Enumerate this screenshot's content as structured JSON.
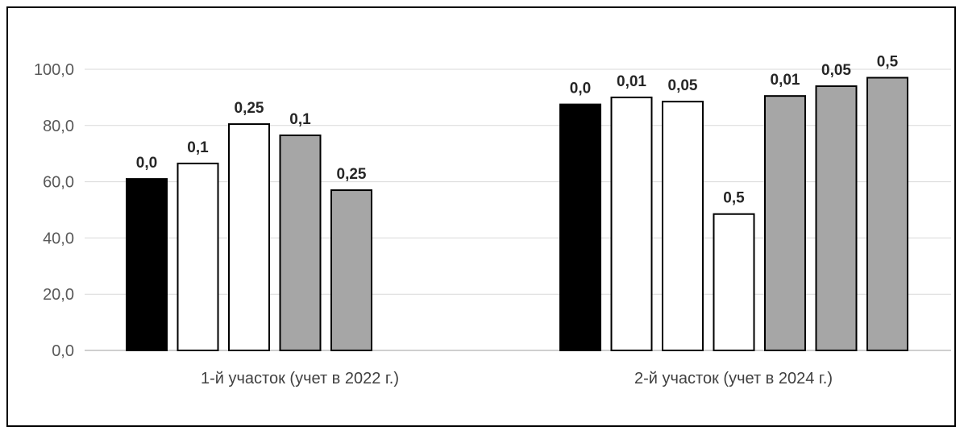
{
  "chart_data": {
    "type": "bar",
    "title": "",
    "xlabel": "",
    "ylabel": "",
    "ylim": [
      0,
      100
    ],
    "yticks": [
      "0,0",
      "20,0",
      "40,0",
      "60,0",
      "80,0",
      "100,0"
    ],
    "yticks_values": [
      0,
      20,
      40,
      60,
      80,
      100
    ],
    "grid": true,
    "legend": "none",
    "categories": [
      "1-й участок (учет в 2022 г.)",
      "2-й участок (учет в 2024 г.)"
    ],
    "groups": [
      {
        "category": "1-й участок (учет в 2022 г.)",
        "bars": [
          {
            "label": "0,0",
            "value": 61.0,
            "fill": "#000000"
          },
          {
            "label": "0,1",
            "value": 66.5,
            "fill": "#ffffff"
          },
          {
            "label": "0,25",
            "value": 80.5,
            "fill": "#ffffff"
          },
          {
            "label": "0,1",
            "value": 76.5,
            "fill": "#a6a6a6"
          },
          {
            "label": "0,25",
            "value": 57.0,
            "fill": "#a6a6a6"
          }
        ]
      },
      {
        "category": "2-й участок (учет в 2024 г.)",
        "bars": [
          {
            "label": "0,0",
            "value": 87.5,
            "fill": "#000000"
          },
          {
            "label": "0,01",
            "value": 90.0,
            "fill": "#ffffff"
          },
          {
            "label": "0,05",
            "value": 88.5,
            "fill": "#ffffff"
          },
          {
            "label": "0,5",
            "value": 48.5,
            "fill": "#ffffff"
          },
          {
            "label": "0,01",
            "value": 90.5,
            "fill": "#a6a6a6"
          },
          {
            "label": "0,05",
            "value": 94.0,
            "fill": "#a6a6a6"
          },
          {
            "label": "0,5",
            "value": 97.0,
            "fill": "#a6a6a6"
          }
        ]
      }
    ],
    "colors": {
      "grid": "#d9d9d9",
      "bar_stroke": "#000000",
      "axis": "#bfbfbf"
    }
  }
}
